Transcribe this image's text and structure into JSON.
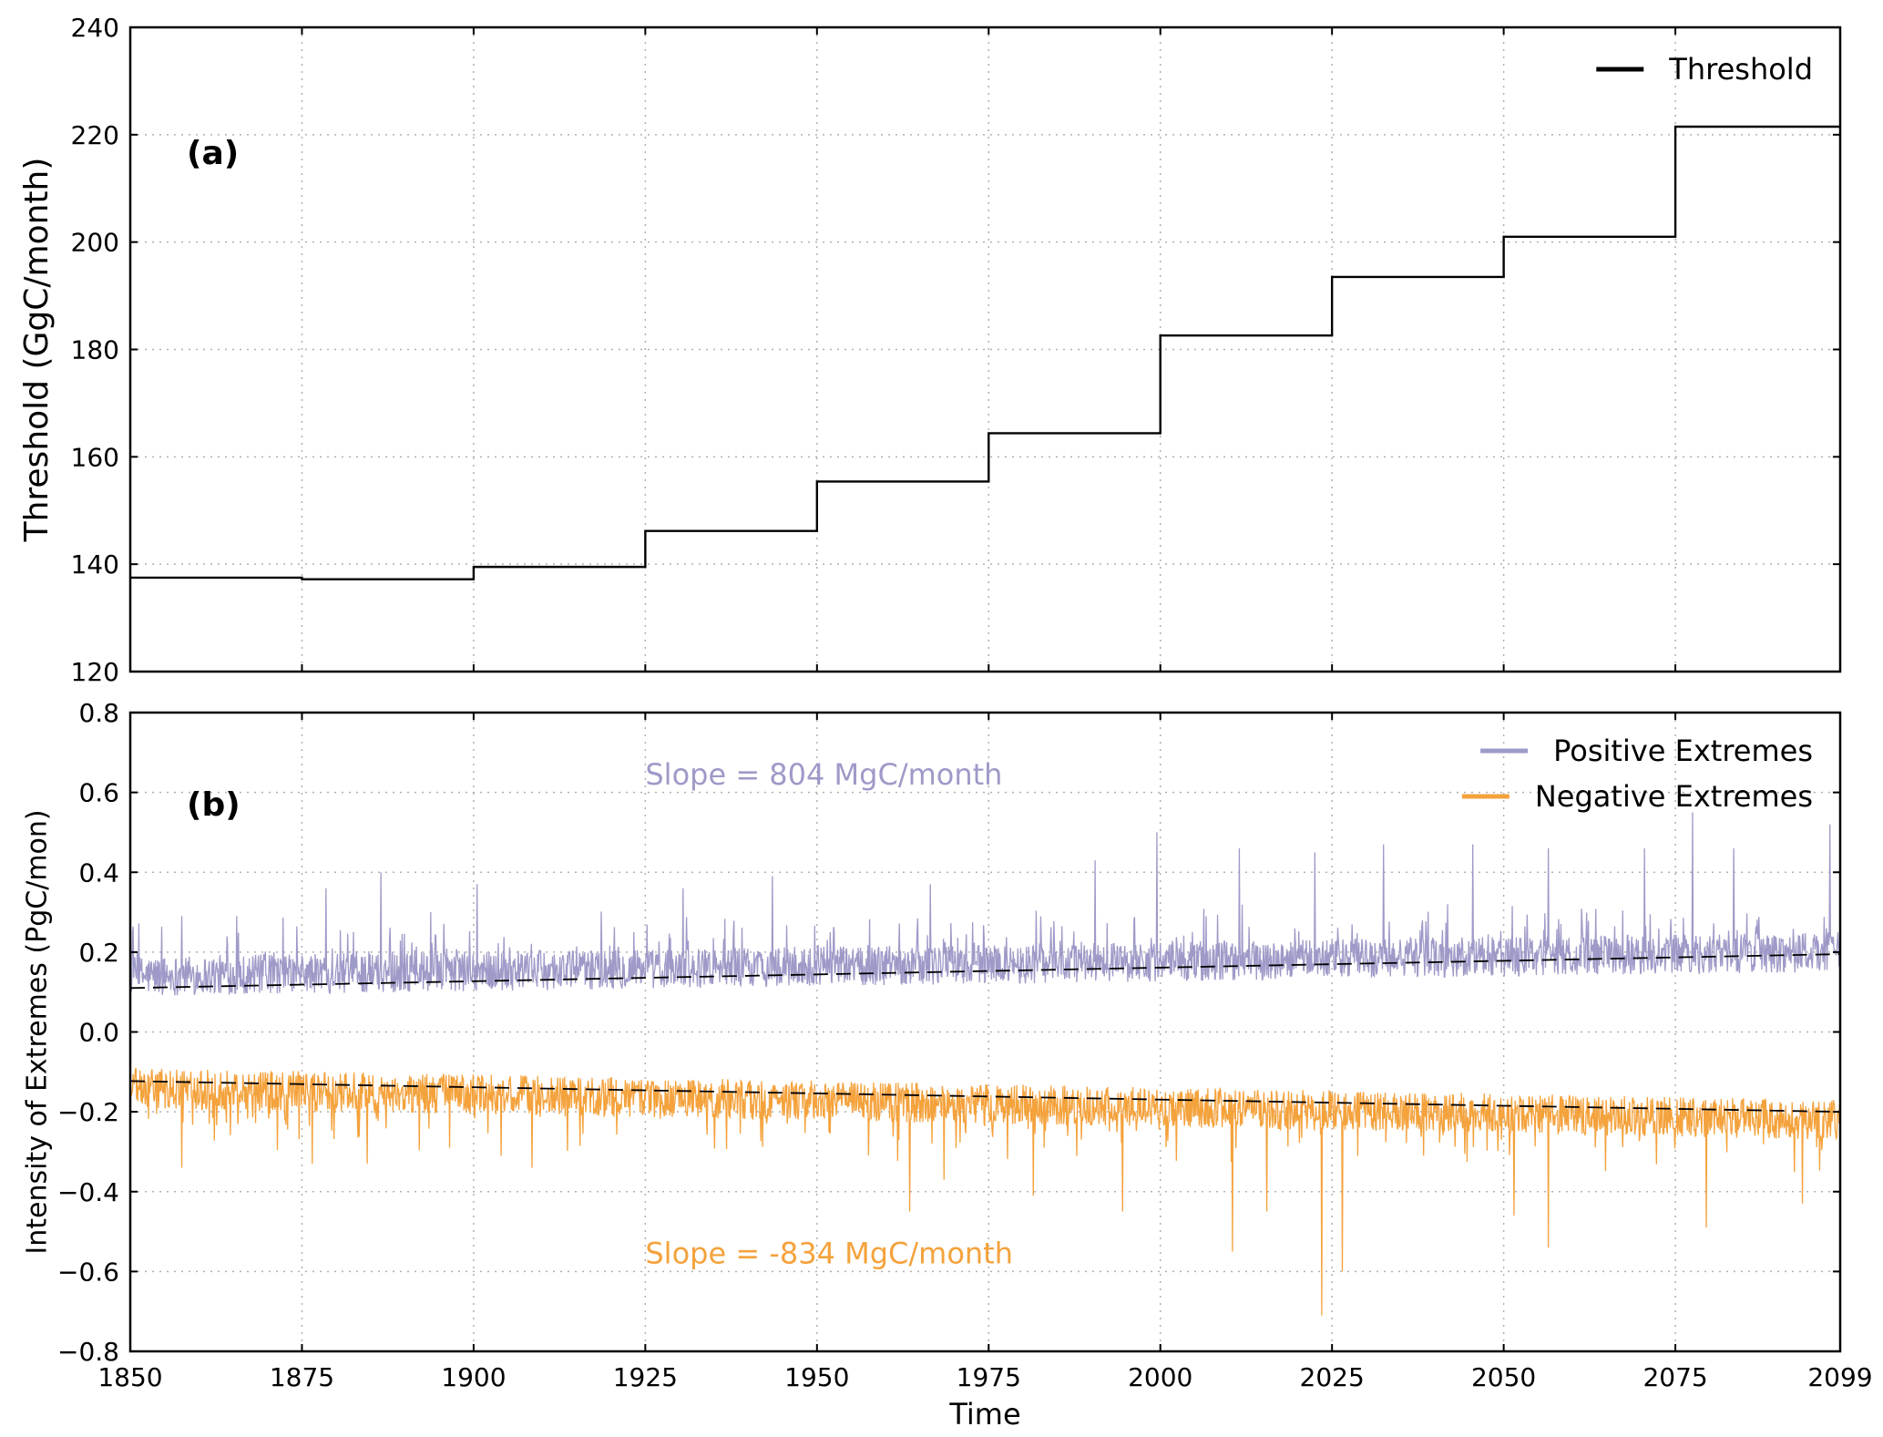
{
  "chart_data": [
    {
      "panel_label": "(a)",
      "type": "line",
      "xlabel": "",
      "ylabel": "Threshold (GgC/month)",
      "xlim": [
        1850,
        2099
      ],
      "ylim": [
        120,
        240
      ],
      "xticks": [
        1850,
        1875,
        1900,
        1925,
        1950,
        1975,
        2000,
        2025,
        2050,
        2075,
        2099
      ],
      "yticks": [
        120,
        140,
        160,
        180,
        200,
        220,
        240
      ],
      "grid": true,
      "legend_position": "top-right",
      "series": [
        {
          "name": "Threshold",
          "color": "#000000",
          "step": true,
          "points": [
            [
              1850,
              137.5
            ],
            [
              1875,
              137.2
            ],
            [
              1900,
              139.5
            ],
            [
              1925,
              146.2
            ],
            [
              1950,
              155.4
            ],
            [
              1975,
              164.4
            ],
            [
              2000,
              182.6
            ],
            [
              2025,
              193.5
            ],
            [
              2050,
              201.0
            ],
            [
              2075,
              221.5
            ],
            [
              2099,
              221.5
            ]
          ]
        }
      ]
    },
    {
      "panel_label": "(b)",
      "type": "line",
      "xlabel": "Time",
      "ylabel": "Intensity of Extremes (PgC/mon)",
      "xlim": [
        1850,
        2099
      ],
      "ylim": [
        -0.8,
        0.8
      ],
      "xticks": [
        1850,
        1875,
        1900,
        1925,
        1950,
        1975,
        2000,
        2025,
        2050,
        2075,
        2099
      ],
      "yticks": [
        -0.8,
        -0.6,
        -0.4,
        -0.2,
        0.0,
        0.2,
        0.4,
        0.6,
        0.8
      ],
      "grid": true,
      "legend_position": "top-right",
      "series": [
        {
          "name": "Positive Extremes",
          "color": "#9e9ac8",
          "monthly": true,
          "mean_start": 0.14,
          "mean_end": 0.2,
          "spread": 0.05,
          "spikes": [
            [
              1857,
              0.29
            ],
            [
              1865,
              0.29
            ],
            [
              1878,
              0.36
            ],
            [
              1886,
              0.4
            ],
            [
              1900,
              0.37
            ],
            [
              1930,
              0.36
            ],
            [
              1943,
              0.39
            ],
            [
              1966,
              0.37
            ],
            [
              1990,
              0.43
            ],
            [
              1999,
              0.5
            ],
            [
              2011,
              0.46
            ],
            [
              2022,
              0.45
            ],
            [
              2032,
              0.47
            ],
            [
              2045,
              0.47
            ],
            [
              2056,
              0.46
            ],
            [
              2070,
              0.46
            ],
            [
              2077,
              0.55
            ],
            [
              2083,
              0.46
            ],
            [
              2097,
              0.52
            ]
          ]
        },
        {
          "name": "Negative Extremes",
          "color": "#f4a23c",
          "monthly": true,
          "mean_start": -0.14,
          "mean_end": -0.22,
          "spread": 0.05,
          "spikes": [
            [
              1857,
              -0.34
            ],
            [
              1876,
              -0.33
            ],
            [
              1884,
              -0.33
            ],
            [
              1896,
              -0.29
            ],
            [
              1908,
              -0.34
            ],
            [
              1963,
              -0.45
            ],
            [
              1968,
              -0.37
            ],
            [
              1981,
              -0.41
            ],
            [
              1994,
              -0.45
            ],
            [
              2010,
              -0.55
            ],
            [
              2015,
              -0.45
            ],
            [
              2023,
              -0.71
            ],
            [
              2026,
              -0.6
            ],
            [
              2051,
              -0.46
            ],
            [
              2056,
              -0.54
            ],
            [
              2079,
              -0.49
            ],
            [
              2093,
              -0.43
            ]
          ]
        },
        {
          "name": "",
          "color": "#000000",
          "dashed": true,
          "points": [
            [
              1850,
              0.11
            ],
            [
              2099,
              0.195
            ]
          ]
        },
        {
          "name": "",
          "color": "#000000",
          "dashed": true,
          "points": [
            [
              1850,
              -0.123
            ],
            [
              2099,
              -0.2
            ]
          ]
        }
      ],
      "annotations": [
        {
          "text": "Slope = 804 MgC/month",
          "x": 1925,
          "y": 0.62,
          "color": "#9e9ac8"
        },
        {
          "text": "Slope = -834 MgC/month",
          "x": 1925,
          "y": -0.58,
          "color": "#f4a23c"
        }
      ]
    }
  ]
}
